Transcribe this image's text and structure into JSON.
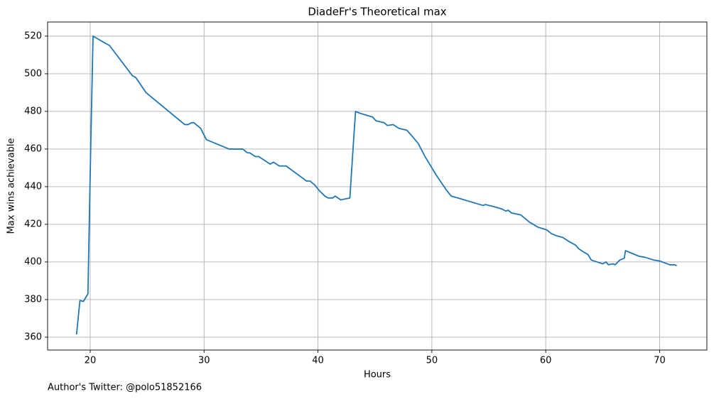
{
  "chart_data": {
    "type": "line",
    "title": "DiadeFr's Theoretical max",
    "x_label": "Hours",
    "y_label": "Max wins achievable",
    "note": "Author's Twitter: @polo51852166",
    "x": [
      18.8,
      19.1,
      19.4,
      19.8,
      20.06,
      20.25,
      21.1,
      21.7,
      23.7,
      24.0,
      24.9,
      28.3,
      28.6,
      28.9,
      29.1,
      29.7,
      30.2,
      32.2,
      33.4,
      33.8,
      34.0,
      34.5,
      34.8,
      35.8,
      36.1,
      36.6,
      37.2,
      39.0,
      39.3,
      39.7,
      40.1,
      40.6,
      40.9,
      41.3,
      41.5,
      42.0,
      42.8,
      43.1,
      43.3,
      43.7,
      44.8,
      45.1,
      45.8,
      46.1,
      46.6,
      47.1,
      47.8,
      48.1,
      48.8,
      49.4,
      49.6,
      50.4,
      51.3,
      51.7,
      52.3,
      54.5,
      54.7,
      55.7,
      56.2,
      56.5,
      56.7,
      57.0,
      57.8,
      58.2,
      58.6,
      58.9,
      59.3,
      60.1,
      60.5,
      60.9,
      61.5,
      62.0,
      62.6,
      62.9,
      63.4,
      63.7,
      64.0,
      64.5,
      65.0,
      65.3,
      65.5,
      65.9,
      66.1,
      66.5,
      66.9,
      67.0,
      68.2,
      68.7,
      69.5,
      70.0,
      70.9,
      71.3,
      71.5
    ],
    "series": [
      {
        "name": "Max wins achievable",
        "color": "#1f77b4",
        "values": [
          361.5,
          379.5,
          379,
          383,
          465,
          520,
          517,
          515,
          499,
          498,
          490,
          473,
          473,
          474,
          474,
          471,
          465,
          460,
          460,
          458,
          458,
          456,
          456,
          452,
          453,
          451,
          451,
          443,
          443,
          441,
          438,
          435,
          434,
          434,
          435,
          433,
          434,
          462,
          480,
          479,
          477,
          475,
          474,
          472.5,
          473,
          471,
          470,
          468,
          463,
          456,
          454,
          446,
          438,
          435,
          434,
          430,
          430.5,
          429,
          428,
          427,
          427.5,
          426,
          425,
          423,
          421,
          420,
          418.5,
          417,
          415,
          414,
          413,
          411,
          409,
          407,
          405,
          404,
          401,
          400,
          399,
          400,
          398.5,
          399,
          398.5,
          401,
          402,
          406,
          403,
          402.5,
          401,
          400.5,
          398.5,
          398.5,
          398
        ]
      }
    ],
    "xlim": [
      16.26,
      74.15
    ],
    "ylim": [
      353.2,
      527.5
    ],
    "xticks": [
      20,
      30,
      40,
      50,
      60,
      70
    ],
    "yticks": [
      360,
      380,
      400,
      420,
      440,
      460,
      480,
      500,
      520
    ],
    "grid": true
  }
}
